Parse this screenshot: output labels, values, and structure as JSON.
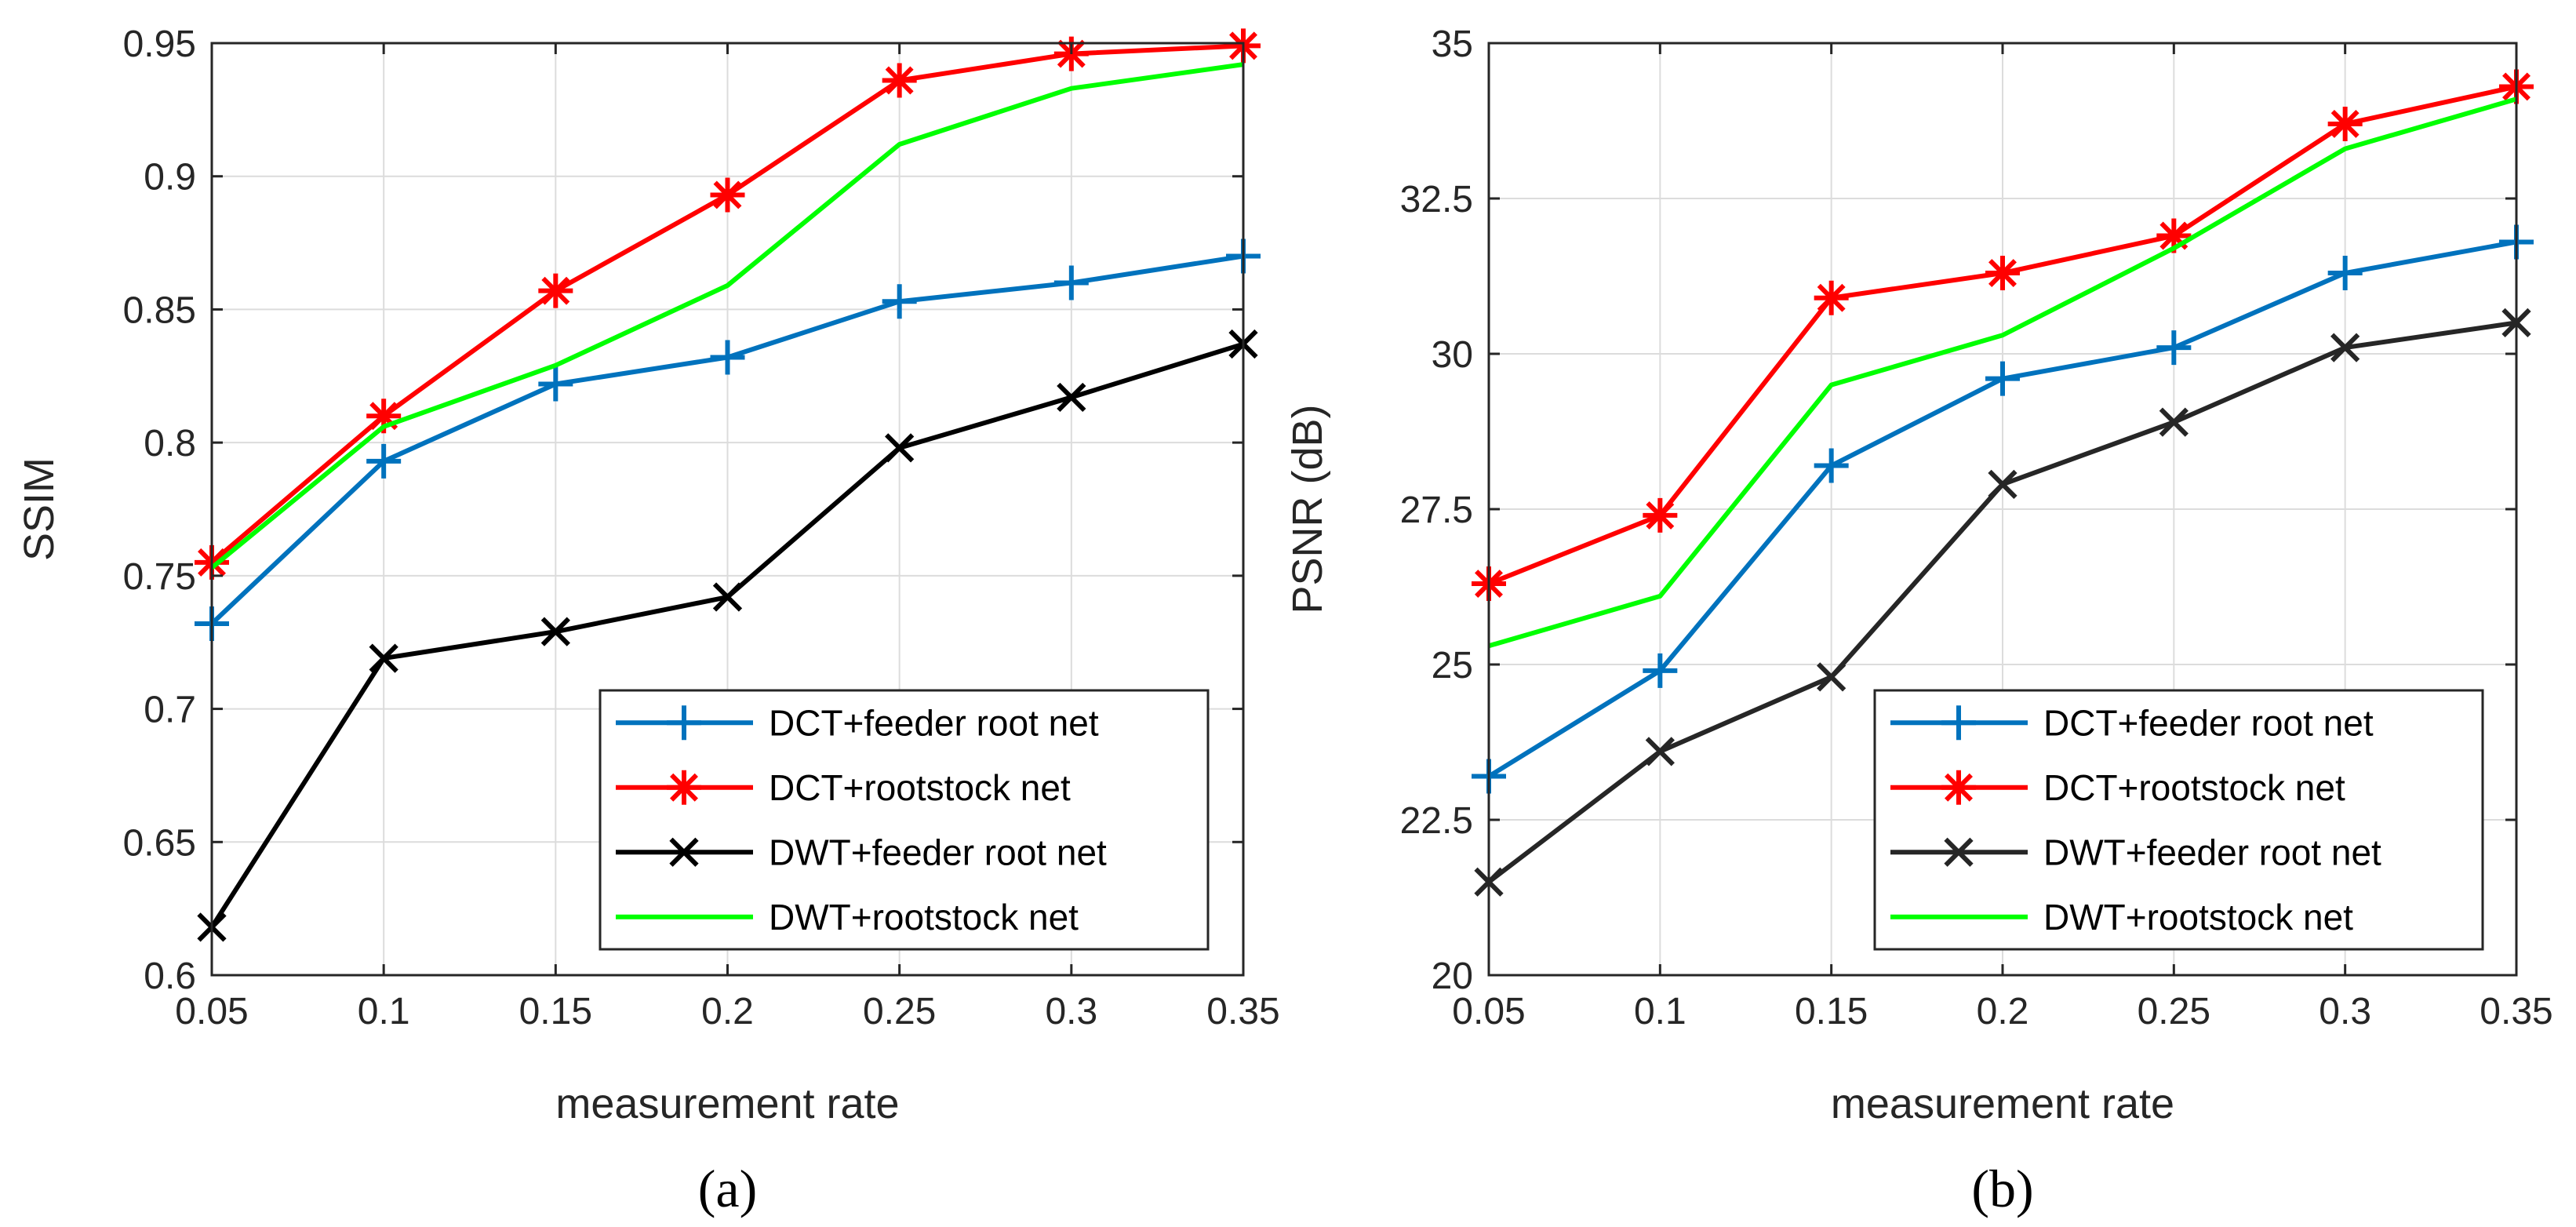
{
  "chart_data": [
    {
      "type": "line",
      "title": "",
      "caption": "(a)",
      "xlabel": "measurement rate",
      "ylabel": "SSIM",
      "x": [
        0.05,
        0.1,
        0.15,
        0.2,
        0.25,
        0.3,
        0.35
      ],
      "xlim": [
        0.05,
        0.35
      ],
      "ylim": [
        0.6,
        0.95
      ],
      "xticks": [
        "0.05",
        "0.1",
        "0.15",
        "0.2",
        "0.25",
        "0.3",
        "0.35"
      ],
      "yticks": [
        "0.6",
        "0.65",
        "0.7",
        "0.75",
        "0.8",
        "0.85",
        "0.9",
        "0.95"
      ],
      "grid": true,
      "legend_position": "bottom-right",
      "series": [
        {
          "name": "DCT+feeder root net",
          "color": "#0072BD",
          "marker": "plus",
          "values": [
            0.732,
            0.793,
            0.822,
            0.832,
            0.853,
            0.86,
            0.87
          ]
        },
        {
          "name": "DCT+rootstock net",
          "color": "#FF0000",
          "marker": "star",
          "values": [
            0.755,
            0.81,
            0.857,
            0.893,
            0.936,
            0.946,
            0.949
          ]
        },
        {
          "name": "DWT+feeder root net",
          "color": "#000000",
          "marker": "x",
          "values": [
            0.618,
            0.719,
            0.729,
            0.742,
            0.798,
            0.817,
            0.837
          ]
        },
        {
          "name": "DWT+rootstock net",
          "color": "#00FF00",
          "marker": "none",
          "values": [
            0.753,
            0.806,
            0.829,
            0.859,
            0.912,
            0.933,
            0.942
          ]
        }
      ]
    },
    {
      "type": "line",
      "title": "",
      "caption": "(b)",
      "xlabel": "measurement rate",
      "ylabel": "PSNR (dB)",
      "x": [
        0.05,
        0.1,
        0.15,
        0.2,
        0.25,
        0.3,
        0.35
      ],
      "xlim": [
        0.05,
        0.35
      ],
      "ylim": [
        20,
        35
      ],
      "xticks": [
        "0.05",
        "0.1",
        "0.15",
        "0.2",
        "0.25",
        "0.3",
        "0.35"
      ],
      "yticks": [
        "20",
        "22.5",
        "25",
        "27.5",
        "30",
        "32.5",
        "35"
      ],
      "grid": true,
      "legend_position": "bottom-right",
      "series": [
        {
          "name": "DCT+feeder root net",
          "color": "#0072BD",
          "marker": "plus",
          "values": [
            23.2,
            24.9,
            28.2,
            29.6,
            30.1,
            31.3,
            31.8
          ]
        },
        {
          "name": "DCT+rootstock net",
          "color": "#FF0000",
          "marker": "star",
          "values": [
            26.3,
            27.4,
            30.9,
            31.3,
            31.9,
            33.7,
            34.3
          ]
        },
        {
          "name": "DWT+feeder root net",
          "color": "#262626",
          "marker": "x",
          "values": [
            21.5,
            23.6,
            24.8,
            27.9,
            28.9,
            30.1,
            30.5
          ]
        },
        {
          "name": "DWT+rootstock net",
          "color": "#00FF00",
          "marker": "none",
          "values": [
            25.3,
            26.1,
            29.5,
            30.3,
            31.7,
            33.3,
            34.1
          ]
        }
      ]
    }
  ]
}
